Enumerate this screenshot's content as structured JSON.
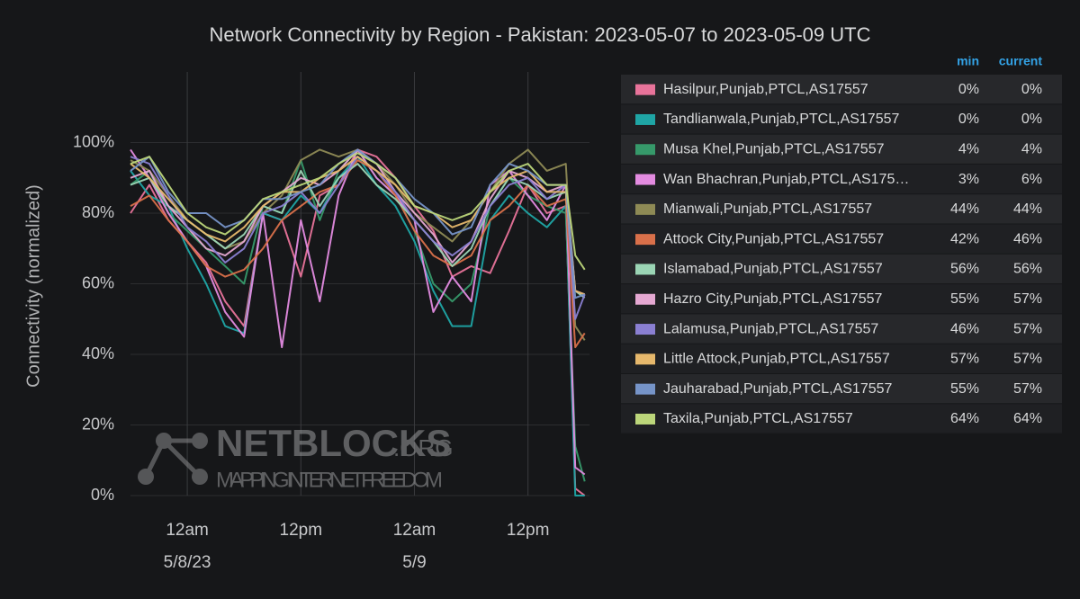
{
  "chart_data": {
    "type": "line",
    "title": "Network Connectivity by Region - Pakistan: 2023-05-07 to 2023-05-09 UTC",
    "ylabel": "Connectivity (normalized)",
    "watermark": {
      "title": "NETBLOCKS",
      "suffix": ".ORG",
      "tagline": "MAPPING INTERNET FREEDOM"
    },
    "legend_columns": [
      "min",
      "current"
    ],
    "grid": true,
    "xlim": [
      "2023-05-07 18:00",
      "2023-05-09 18:30"
    ],
    "xticks": [
      {
        "value": "2023-05-08 00:00",
        "label": "12am"
      },
      {
        "value": "2023-05-08 12:00",
        "label": "12pm"
      },
      {
        "value": "2023-05-09 00:00",
        "label": "12am"
      },
      {
        "value": "2023-05-09 12:00",
        "label": "12pm"
      }
    ],
    "x_date_labels": [
      {
        "value": "2023-05-08 00:00",
        "label": "5/8/23"
      },
      {
        "value": "2023-05-09 00:00",
        "label": "5/9"
      }
    ],
    "ylim": [
      0,
      120
    ],
    "yticks": [
      {
        "value": 0,
        "label": "0%"
      },
      {
        "value": 20,
        "label": "20%"
      },
      {
        "value": 40,
        "label": "40%"
      },
      {
        "value": 60,
        "label": "60%"
      },
      {
        "value": 80,
        "label": "80%"
      },
      {
        "value": 100,
        "label": "100%"
      }
    ],
    "x": [
      "2023-05-07 18:00",
      "2023-05-07 20:00",
      "2023-05-07 22:00",
      "2023-05-08 00:00",
      "2023-05-08 02:00",
      "2023-05-08 04:00",
      "2023-05-08 06:00",
      "2023-05-08 08:00",
      "2023-05-08 10:00",
      "2023-05-08 12:00",
      "2023-05-08 14:00",
      "2023-05-08 16:00",
      "2023-05-08 18:00",
      "2023-05-08 20:00",
      "2023-05-08 22:00",
      "2023-05-09 00:00",
      "2023-05-09 02:00",
      "2023-05-09 04:00",
      "2023-05-09 06:00",
      "2023-05-09 08:00",
      "2023-05-09 10:00",
      "2023-05-09 12:00",
      "2023-05-09 14:00",
      "2023-05-09 16:00",
      "2023-05-09 17:00",
      "2023-05-09 18:00"
    ],
    "series": [
      {
        "name": "Hasilpur,Punjab,PTCL,AS17557",
        "color": "#e8739a",
        "min": "0%",
        "current": "0%",
        "values": [
          80,
          88,
          78,
          72,
          66,
          55,
          48,
          80,
          78,
          62,
          85,
          88,
          98,
          96,
          90,
          82,
          75,
          62,
          65,
          63,
          75,
          88,
          80,
          82,
          2,
          0
        ]
      },
      {
        "name": "Tandlianwala,Punjab,PTCL,AS17557",
        "color": "#1fa5a5",
        "min": "0%",
        "current": "0%",
        "values": [
          92,
          85,
          82,
          70,
          60,
          48,
          46,
          80,
          78,
          85,
          80,
          90,
          96,
          88,
          82,
          72,
          58,
          48,
          48,
          78,
          85,
          80,
          76,
          82,
          0,
          0
        ]
      },
      {
        "name": "Musa Khel,Punjab,PTCL,AS17557",
        "color": "#36996a",
        "min": "4%",
        "current": "4%",
        "values": [
          88,
          92,
          80,
          75,
          70,
          65,
          60,
          82,
          80,
          95,
          78,
          92,
          98,
          90,
          85,
          75,
          60,
          55,
          60,
          82,
          90,
          85,
          82,
          80,
          14,
          4
        ]
      },
      {
        "name": "Wan Bhachran,Punjab,PTCL,AS175…",
        "color": "#e38be0",
        "min": "3%",
        "current": "6%",
        "values": [
          98,
          90,
          80,
          72,
          65,
          52,
          45,
          80,
          42,
          78,
          55,
          85,
          98,
          90,
          85,
          78,
          52,
          62,
          55,
          88,
          92,
          85,
          78,
          88,
          8,
          6
        ]
      },
      {
        "name": "Mianwali,Punjab,PTCL,AS17557",
        "color": "#8e8a55",
        "min": "44%",
        "current": "44%",
        "values": [
          95,
          92,
          85,
          78,
          74,
          70,
          72,
          80,
          85,
          95,
          98,
          96,
          98,
          94,
          88,
          80,
          76,
          72,
          78,
          86,
          94,
          98,
          92,
          94,
          48,
          44
        ]
      },
      {
        "name": "Attock City,Punjab,PTCL,AS17557",
        "color": "#d9704a",
        "min": "42%",
        "current": "46%",
        "values": [
          82,
          85,
          78,
          72,
          65,
          62,
          64,
          70,
          78,
          82,
          86,
          88,
          95,
          92,
          85,
          75,
          68,
          65,
          68,
          78,
          82,
          88,
          82,
          84,
          42,
          46
        ]
      },
      {
        "name": "Islamabad,Punjab,PTCL,AS17557",
        "color": "#9bd5b5",
        "min": "56%",
        "current": "56%",
        "values": [
          88,
          90,
          82,
          78,
          74,
          70,
          74,
          82,
          80,
          92,
          82,
          90,
          94,
          88,
          84,
          78,
          72,
          65,
          70,
          82,
          90,
          88,
          84,
          86,
          58,
          56
        ]
      },
      {
        "name": "Hazro City,Punjab,PTCL,AS17557",
        "color": "#e5a8d2",
        "min": "55%",
        "current": "57%",
        "values": [
          90,
          92,
          82,
          76,
          70,
          68,
          72,
          82,
          86,
          90,
          88,
          92,
          98,
          94,
          86,
          80,
          74,
          66,
          72,
          84,
          92,
          90,
          86,
          88,
          58,
          57
        ]
      },
      {
        "name": "Lalamusa,Punjab,PTCL,AS17557",
        "color": "#8a7fd2",
        "min": "46%",
        "current": "57%",
        "values": [
          96,
          94,
          85,
          76,
          72,
          66,
          70,
          80,
          82,
          86,
          80,
          88,
          96,
          92,
          86,
          78,
          72,
          68,
          72,
          82,
          88,
          90,
          84,
          88,
          50,
          57
        ]
      },
      {
        "name": "Little Attock,Punjab,PTCL,AS17557",
        "color": "#e6b86c",
        "min": "57%",
        "current": "57%",
        "values": [
          94,
          90,
          84,
          78,
          74,
          72,
          76,
          82,
          86,
          86,
          90,
          92,
          96,
          92,
          88,
          82,
          80,
          76,
          78,
          86,
          90,
          92,
          86,
          86,
          58,
          57
        ]
      },
      {
        "name": "Jauharabad,Punjab,PTCL,AS17557",
        "color": "#7694c8",
        "min": "55%",
        "current": "57%",
        "values": [
          92,
          96,
          86,
          80,
          80,
          76,
          78,
          84,
          84,
          86,
          88,
          94,
          98,
          94,
          90,
          84,
          80,
          74,
          76,
          88,
          94,
          92,
          88,
          88,
          56,
          57
        ]
      },
      {
        "name": "Taxila,Punjab,PTCL,AS17557",
        "color": "#bcd67a",
        "min": "64%",
        "current": "64%",
        "values": [
          94,
          96,
          88,
          80,
          76,
          74,
          78,
          84,
          86,
          88,
          90,
          94,
          97,
          94,
          90,
          82,
          80,
          78,
          80,
          86,
          92,
          94,
          88,
          88,
          68,
          64
        ]
      }
    ]
  }
}
